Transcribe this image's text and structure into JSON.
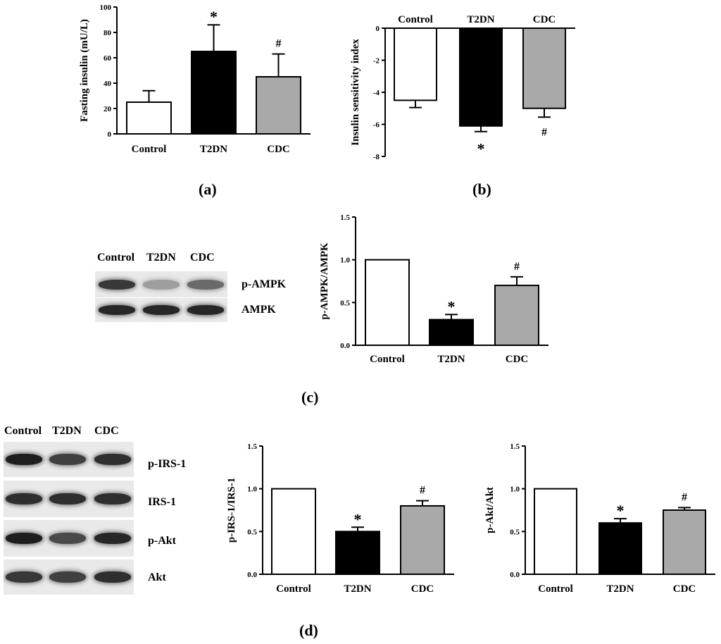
{
  "panel_labels": {
    "a": "(a)",
    "b": "(b)",
    "c": "(c)",
    "d": "(d)"
  },
  "colors": {
    "Control": "#ffffff",
    "T2DN": "#000000",
    "CDC": "#a9a9a9",
    "axis": "#000000"
  },
  "chart_data": [
    {
      "id": "a",
      "type": "bar",
      "categories": [
        "Control",
        "T2DN",
        "CDC"
      ],
      "values": [
        25,
        65,
        45
      ],
      "errors": [
        9,
        21,
        18
      ],
      "annotations": [
        "",
        "*",
        "#"
      ],
      "ylabel": "Fasting insulin (mU/L)",
      "ylim": [
        0,
        100
      ],
      "yticks": [
        0,
        20,
        40,
        60,
        80,
        100
      ],
      "ytick_labels": [
        "0",
        "20",
        "40",
        "60",
        "80",
        "100"
      ]
    },
    {
      "id": "b",
      "type": "bar",
      "categories": [
        "Control",
        "T2DN",
        "CDC"
      ],
      "values": [
        -4.5,
        -6.1,
        -5.0
      ],
      "errors": [
        0.45,
        0.35,
        0.55
      ],
      "annotations": [
        "",
        "*",
        "#"
      ],
      "ylabel": "Insulin sensitivity index",
      "ylim": [
        -8,
        0
      ],
      "yticks": [
        0,
        -2,
        -4,
        -6,
        -8
      ],
      "ytick_labels": [
        "0",
        "-2",
        "-4",
        "-6",
        "-8"
      ]
    },
    {
      "id": "c",
      "type": "bar",
      "categories": [
        "Control",
        "T2DN",
        "CDC"
      ],
      "values": [
        1.0,
        0.3,
        0.7
      ],
      "errors": [
        0,
        0.06,
        0.1
      ],
      "annotations": [
        "",
        "*",
        "#"
      ],
      "ylabel": "p-AMPK/AMPK",
      "ylim": [
        0,
        1.5
      ],
      "yticks": [
        0,
        0.5,
        1.0,
        1.5
      ],
      "ytick_labels": [
        "0.0",
        "0.5",
        "1.0",
        "1.5"
      ]
    },
    {
      "id": "d1",
      "type": "bar",
      "categories": [
        "Control",
        "T2DN",
        "CDC"
      ],
      "values": [
        1.0,
        0.5,
        0.8
      ],
      "errors": [
        0,
        0.05,
        0.06
      ],
      "annotations": [
        "",
        "*",
        "#"
      ],
      "ylabel": "p-IRS-1/IRS-1",
      "ylim": [
        0,
        1.5
      ],
      "yticks": [
        0,
        0.5,
        1.0,
        1.5
      ],
      "ytick_labels": [
        "0.0",
        "0.5",
        "1.0",
        "1.5"
      ]
    },
    {
      "id": "d2",
      "type": "bar",
      "categories": [
        "Control",
        "T2DN",
        "CDC"
      ],
      "values": [
        1.0,
        0.6,
        0.75
      ],
      "errors": [
        0,
        0.05,
        0.03
      ],
      "annotations": [
        "",
        "*",
        "#"
      ],
      "ylabel": "p-Akt/Akt",
      "ylim": [
        0,
        1.5
      ],
      "yticks": [
        0,
        0.5,
        1.0,
        1.5
      ],
      "ytick_labels": [
        "0.0",
        "0.5",
        "1.0",
        "1.5"
      ]
    }
  ],
  "blots": {
    "c": {
      "lanes": [
        "Control",
        "T2DN",
        "CDC"
      ],
      "rows": [
        {
          "label": "p-AMPK",
          "intensity": [
            0.85,
            0.25,
            0.55
          ]
        },
        {
          "label": "AMPK",
          "intensity": [
            0.95,
            0.95,
            0.95
          ]
        }
      ]
    },
    "d": {
      "lanes": [
        "Control",
        "T2DN",
        "CDC"
      ],
      "rows": [
        {
          "label": "p-IRS-1",
          "intensity": [
            1.0,
            0.8,
            0.9
          ]
        },
        {
          "label": "IRS-1",
          "intensity": [
            0.9,
            0.9,
            0.9
          ]
        },
        {
          "label": "p-Akt",
          "intensity": [
            1.0,
            0.75,
            0.95
          ]
        },
        {
          "label": "Akt",
          "intensity": [
            0.85,
            0.8,
            0.9
          ]
        }
      ]
    }
  }
}
